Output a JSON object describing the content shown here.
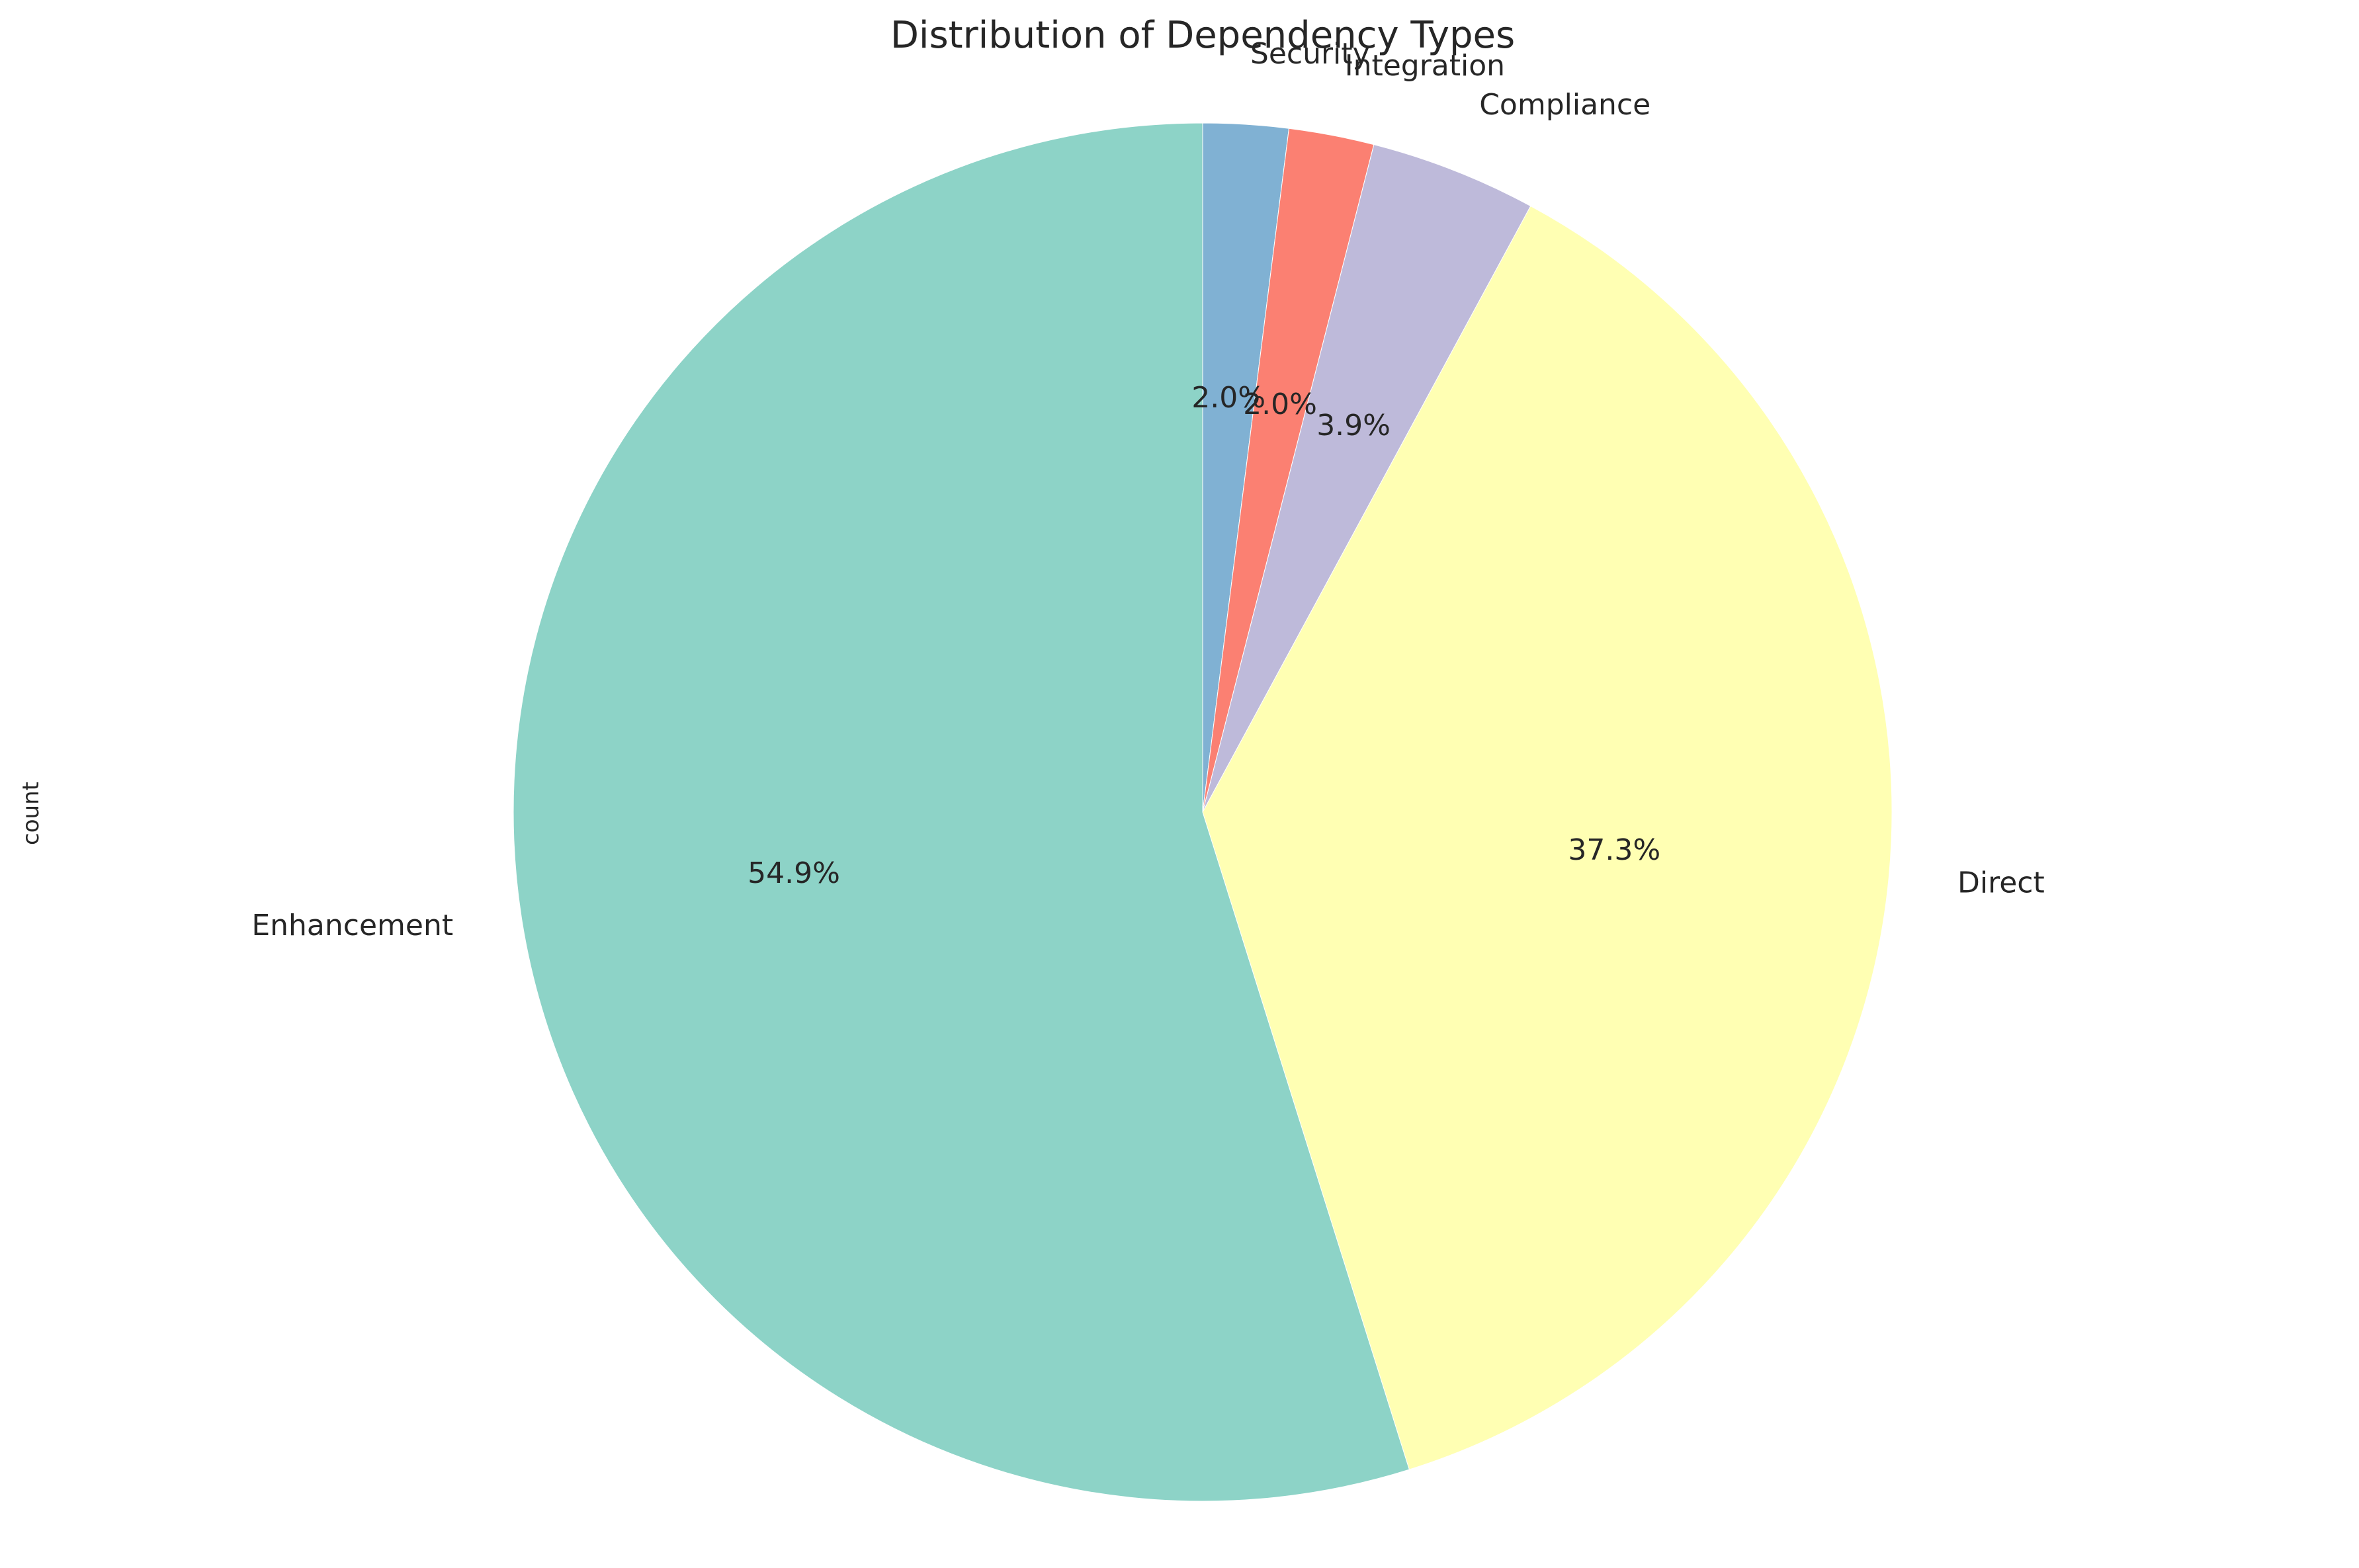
{
  "chart_data": {
    "type": "pie",
    "title": "Distribution of Dependency Types",
    "ylabel": "count",
    "xlabel": "",
    "start_angle_deg": 90,
    "direction": "clockwise",
    "slices": [
      {
        "label": "Security",
        "percent": 2.0,
        "pct_label": "2.0%",
        "color": "#80b1d3"
      },
      {
        "label": "Integration",
        "percent": 2.0,
        "pct_label": "2.0%",
        "color": "#fb8072"
      },
      {
        "label": "Compliance",
        "percent": 3.9,
        "pct_label": "3.9%",
        "color": "#bebada"
      },
      {
        "label": "Direct",
        "percent": 37.3,
        "pct_label": "37.3%",
        "color": "#ffffb3"
      },
      {
        "label": "Enhancement",
        "percent": 54.9,
        "pct_label": "54.9%",
        "color": "#8dd3c7"
      }
    ]
  }
}
